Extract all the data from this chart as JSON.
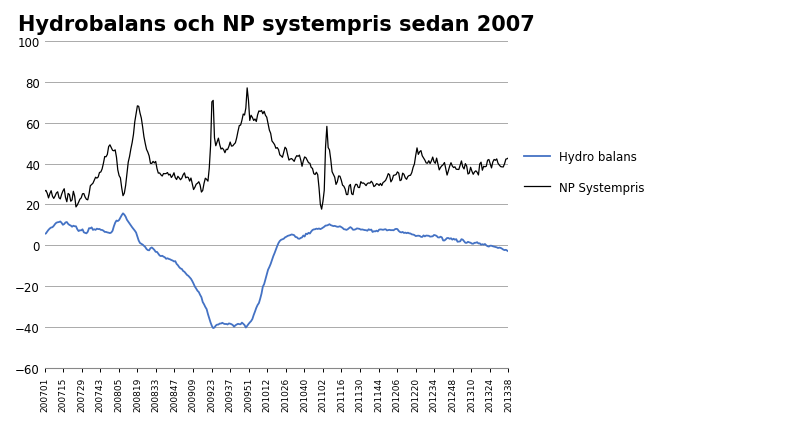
{
  "title": "Hydrobalans och NP systempris sedan 2007",
  "legend_hydro": "Hydro balans",
  "legend_np": "NP Systempris",
  "hydro_color": "#4472C4",
  "np_color": "#000000",
  "background_color": "#ffffff",
  "ylim": [
    -60,
    100
  ],
  "yticks": [
    -60,
    -40,
    -20,
    0,
    20,
    40,
    60,
    80,
    100
  ],
  "grid_color": "#aaaaaa",
  "title_fontsize": 15,
  "xtick_labels": [
    "200701",
    "200715",
    "200729",
    "200743",
    "200805",
    "200819",
    "200833",
    "200847",
    "200909",
    "200923",
    "200937",
    "200951",
    "201012",
    "201026",
    "201040",
    "201102",
    "201116",
    "201130",
    "201144",
    "201206",
    "201220",
    "201234",
    "201248",
    "201310",
    "201324",
    "201338"
  ]
}
